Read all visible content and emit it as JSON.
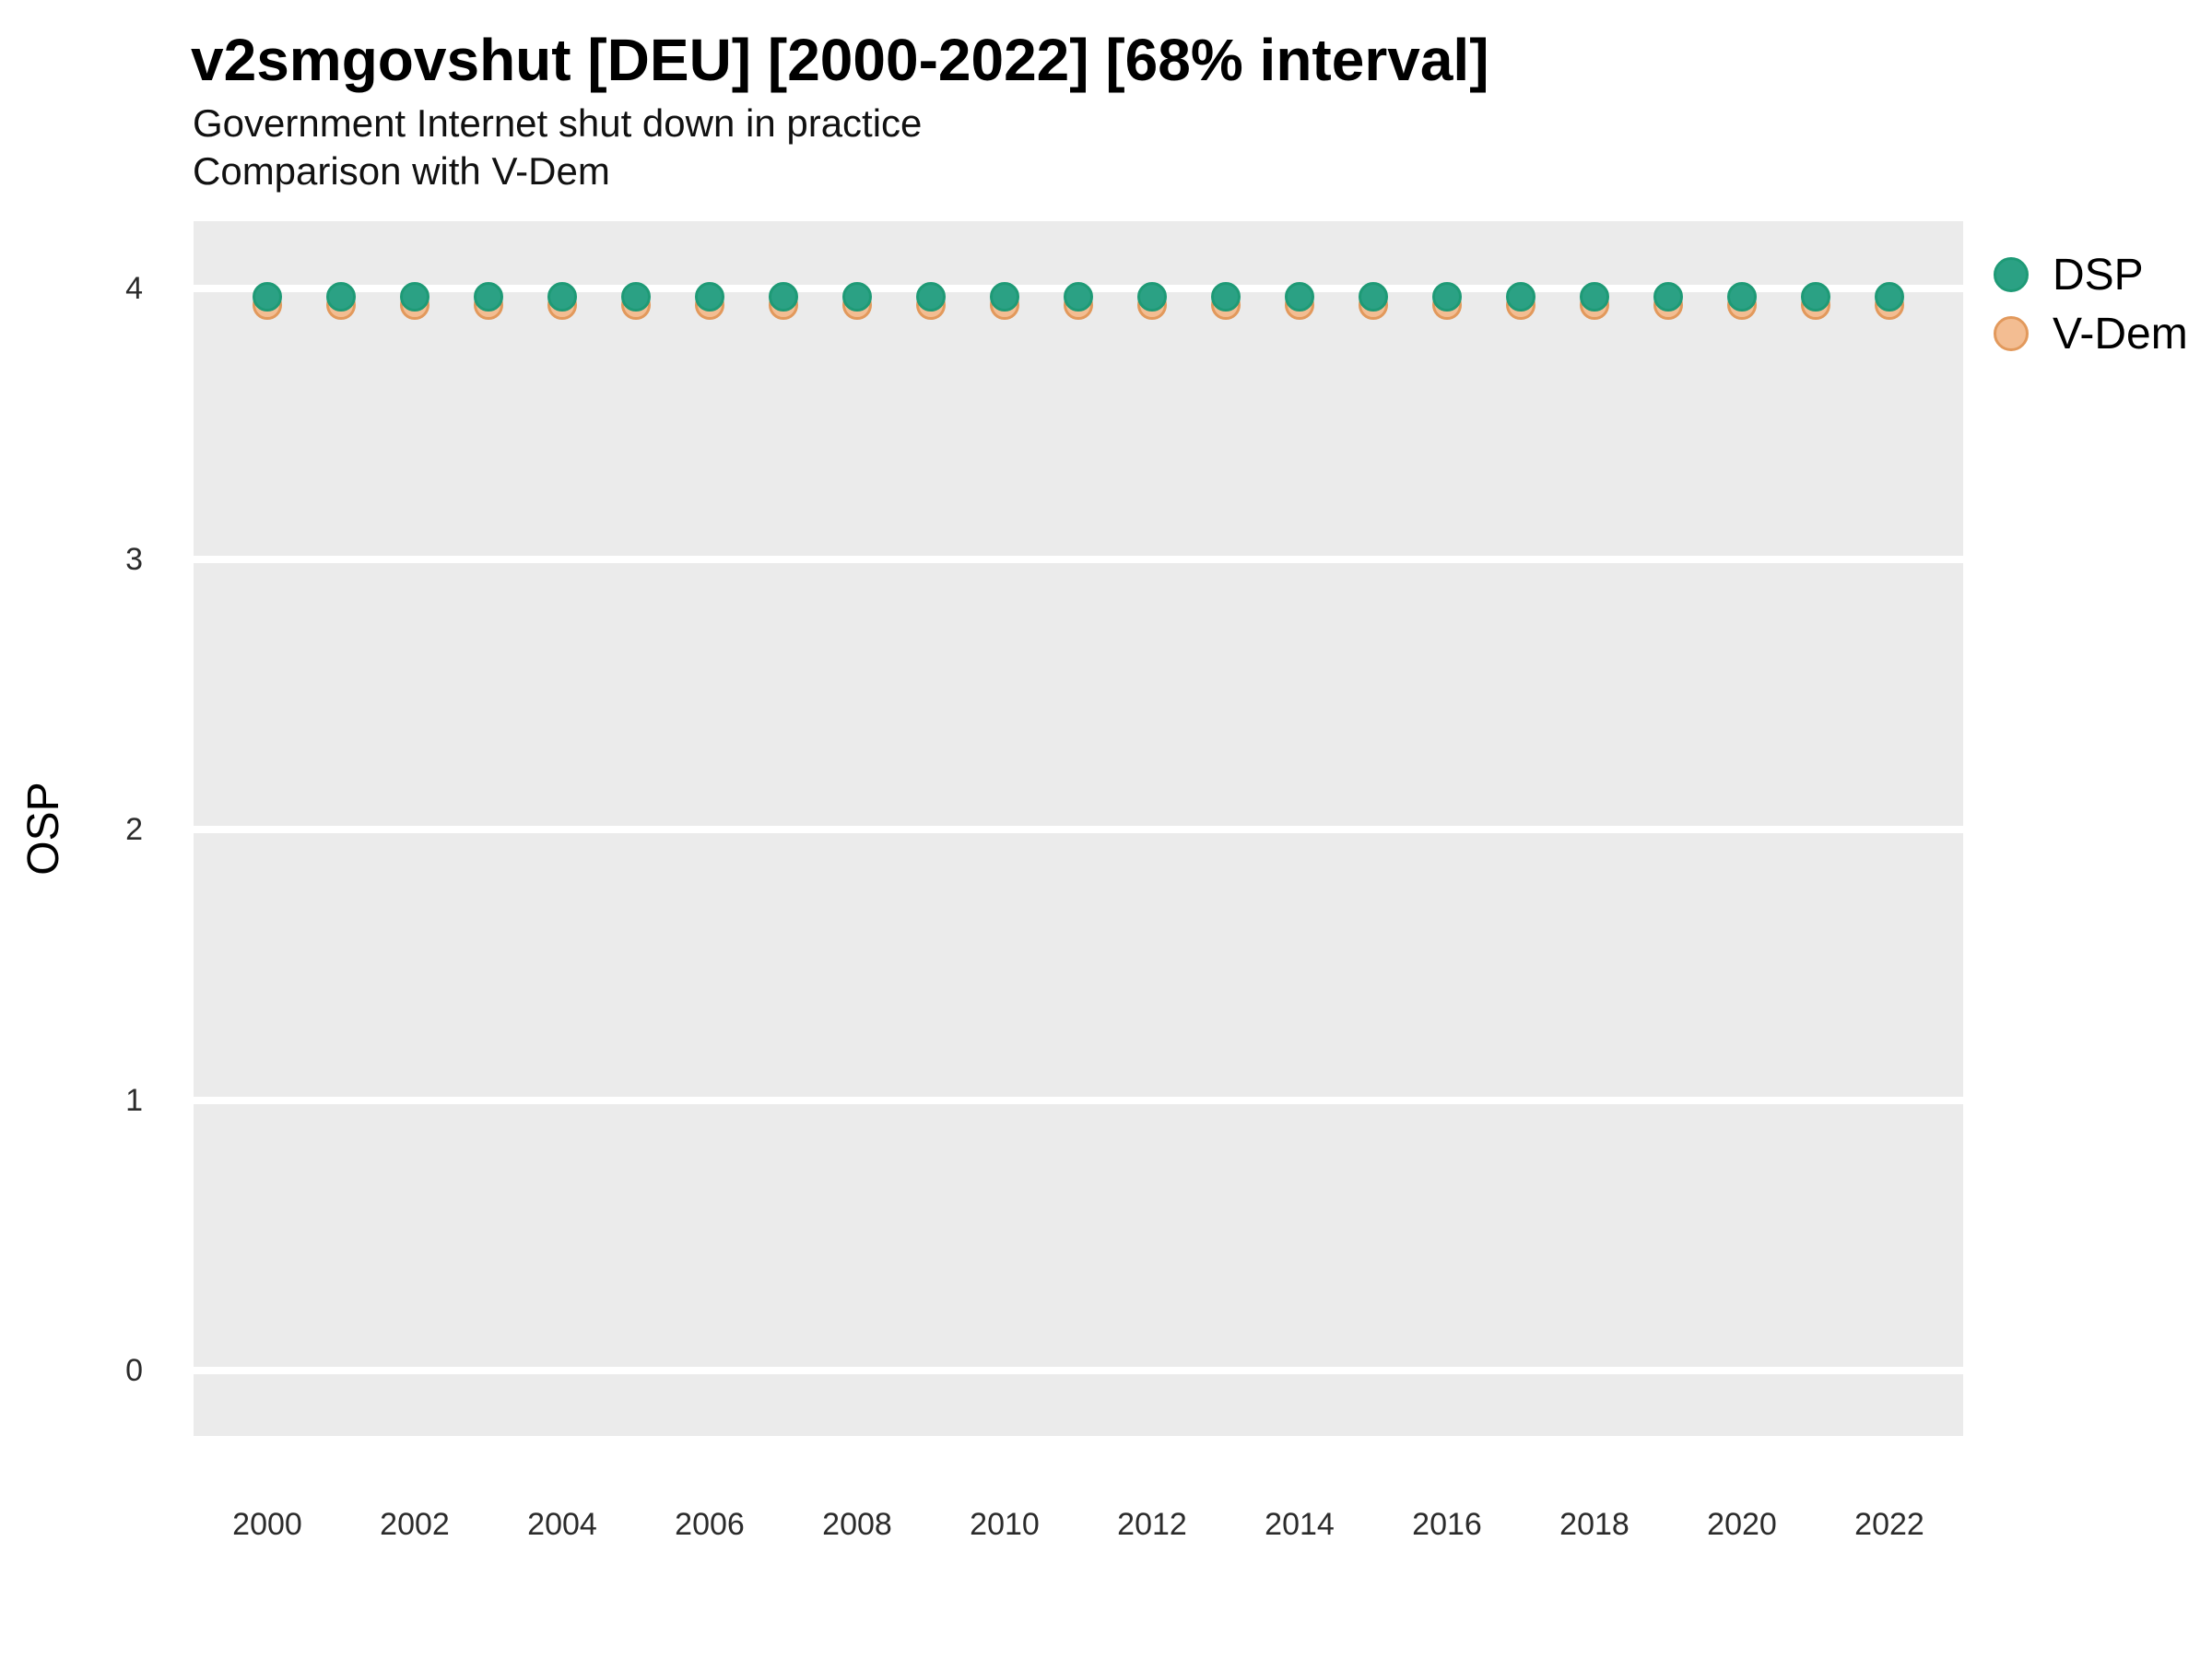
{
  "header": {
    "title": "v2smgovshut [DEU] [2000-2022] [68% interval]",
    "subtitle1": "Government Internet shut down in practice",
    "subtitle2": "Comparison with V-Dem"
  },
  "chart_data": {
    "type": "scatter",
    "title": "v2smgovshut [DEU] [2000-2022] [68% interval]",
    "subtitle1": "Government Internet shut down in practice",
    "subtitle2": "Comparison with V-Dem",
    "xlabel": "",
    "ylabel": "OSP",
    "x": [
      2000,
      2001,
      2002,
      2003,
      2004,
      2005,
      2006,
      2007,
      2008,
      2009,
      2010,
      2011,
      2012,
      2013,
      2014,
      2015,
      2016,
      2017,
      2018,
      2019,
      2020,
      2021,
      2022
    ],
    "series": [
      {
        "name": "DSP",
        "fill": "#2BA184",
        "stroke": "#1E9A76",
        "values": [
          3.97,
          3.97,
          3.97,
          3.97,
          3.97,
          3.97,
          3.97,
          3.97,
          3.97,
          3.97,
          3.97,
          3.97,
          3.97,
          3.97,
          3.97,
          3.97,
          3.97,
          3.97,
          3.97,
          3.97,
          3.97,
          3.97,
          3.97
        ]
      },
      {
        "name": "V-Dem",
        "fill": "#F3BD92",
        "stroke": "#E2995C",
        "values": [
          3.94,
          3.94,
          3.94,
          3.94,
          3.94,
          3.94,
          3.94,
          3.94,
          3.94,
          3.94,
          3.94,
          3.94,
          3.94,
          3.94,
          3.94,
          3.94,
          3.94,
          3.94,
          3.94,
          3.94,
          3.94,
          3.94,
          3.94
        ]
      }
    ],
    "ylim": [
      -0.24,
      4.25
    ],
    "yticks": [
      0,
      1,
      2,
      3,
      4
    ],
    "xticks": [
      2000,
      2002,
      2004,
      2006,
      2008,
      2010,
      2012,
      2014,
      2016,
      2018,
      2020,
      2022
    ],
    "grid": "horizontal-major-only",
    "panel_bg": "#EBEBEB",
    "gridline_color": "#FFFFFF",
    "legend_position": "right-top"
  }
}
